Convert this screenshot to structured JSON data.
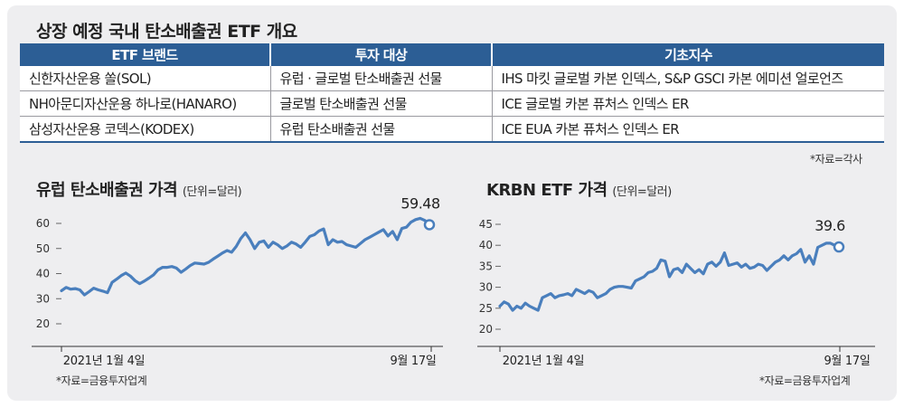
{
  "title": "상장 예정 국내 탄소배출권 ETF 개요",
  "table": {
    "headers": [
      "ETF 브랜드",
      "투자 대상",
      "기초지수"
    ],
    "rows": [
      [
        "신한자산운용 쏠(SOL)",
        "유럽 · 글로벌 탄소배출권 선물",
        "IHS 마킷 글로벌 카본 인덱스, S&P GSCI 카본 에미션 얼로언즈"
      ],
      [
        "NH아문디자산운용 하나로(HANARO)",
        "글로벌 탄소배출권 선물",
        "ICE 글로벌 카본 퓨처스 인덱스 ER"
      ],
      [
        "삼성자산운용 코덱스(KODEX)",
        "유럽 탄소배출권 선물",
        "ICE EUA 카본 퓨처스 인덱스 ER"
      ]
    ],
    "source": "*자료=각사"
  },
  "colors": {
    "header_bg": "#2c5e95",
    "line": "#4a7fbd",
    "panel_bg": "#eeeef0"
  },
  "chart_data": [
    {
      "type": "line",
      "title": "유럽 탄소배출권 가격",
      "unit": "(단위=달러)",
      "x_start_label": "2021년 1월 4일",
      "x_end_label": "9월 17일",
      "ylim": [
        20,
        60
      ],
      "yticks": [
        20,
        30,
        40,
        50,
        60
      ],
      "end_label": "59.48",
      "source": "*자료=금융투자업계",
      "values": [
        33.2,
        34.5,
        33.8,
        34.0,
        33.5,
        31.5,
        32.8,
        34.2,
        33.5,
        33.0,
        32.4,
        36.5,
        37.8,
        39.2,
        40.2,
        39.0,
        37.2,
        36.0,
        37.0,
        38.2,
        39.5,
        41.5,
        42.5,
        42.5,
        42.8,
        42.2,
        40.5,
        41.8,
        43.2,
        44.2,
        44.0,
        43.8,
        44.5,
        45.8,
        47.0,
        48.2,
        49.2,
        48.5,
        50.8,
        54.0,
        56.2,
        53.5,
        50.0,
        52.5,
        53.0,
        50.5,
        52.5,
        51.5,
        50.0,
        51.0,
        52.5,
        51.8,
        50.5,
        52.5,
        54.8,
        55.5,
        57.0,
        57.8,
        51.5,
        53.5,
        52.5,
        52.8,
        51.5,
        51.0,
        50.5,
        52.0,
        53.5,
        54.5,
        55.5,
        56.5,
        57.5,
        55.0,
        56.8,
        53.5,
        58.0,
        58.5,
        60.5,
        61.5,
        62.0,
        61.2,
        59.48
      ]
    },
    {
      "type": "line",
      "title": "KRBN ETF 가격",
      "unit": "(단위=달러)",
      "x_start_label": "2021년 1월 4일",
      "x_end_label": "9월 17일",
      "ylim": [
        20,
        45
      ],
      "yticks": [
        20,
        25,
        30,
        35,
        40,
        45
      ],
      "end_label": "39.6",
      "source": "*자료=금융투자업계",
      "values": [
        25.5,
        26.5,
        26.0,
        24.5,
        25.5,
        25.0,
        26.2,
        25.5,
        25.0,
        24.5,
        27.5,
        28.0,
        28.5,
        27.5,
        28.0,
        28.2,
        28.5,
        28.0,
        29.5,
        29.0,
        28.5,
        29.2,
        28.8,
        27.5,
        28.0,
        28.5,
        29.5,
        30.0,
        30.2,
        30.2,
        30.0,
        29.8,
        31.5,
        32.0,
        32.5,
        33.5,
        33.8,
        34.5,
        36.5,
        36.2,
        32.5,
        34.2,
        34.5,
        33.5,
        35.5,
        34.5,
        33.5,
        34.2,
        33.2,
        35.5,
        36.0,
        35.0,
        36.0,
        38.2,
        35.2,
        35.5,
        35.8,
        34.8,
        35.5,
        34.5,
        34.8,
        35.5,
        35.2,
        34.0,
        35.0,
        36.0,
        36.5,
        37.5,
        36.5,
        37.5,
        38.0,
        39.0,
        36.0,
        37.5,
        35.5,
        39.5,
        40.0,
        40.5,
        40.5,
        40.0,
        39.6
      ]
    }
  ]
}
